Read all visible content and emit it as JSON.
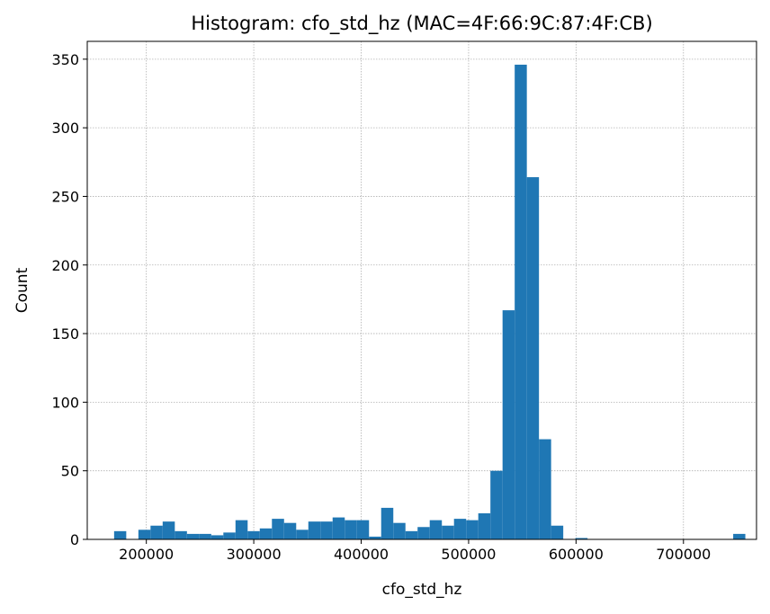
{
  "chart_data": {
    "type": "bar",
    "title": "Histogram: cfo_std_hz (MAC=4F:66:9C:87:4F:CB)",
    "xlabel": "cfo_std_hz",
    "ylabel": "Count",
    "xlim": [
      145000,
      768000
    ],
    "ylim": [
      0,
      363
    ],
    "xticks": [
      200000,
      300000,
      400000,
      500000,
      600000,
      700000
    ],
    "yticks": [
      0,
      50,
      100,
      150,
      200,
      250,
      300,
      350
    ],
    "grid": true,
    "bar_color": "#1f77b4",
    "bin_start": 170000,
    "bin_width": 11300,
    "values": [
      6,
      0,
      7,
      10,
      13,
      6,
      4,
      4,
      3,
      5,
      14,
      6,
      8,
      15,
      12,
      7,
      13,
      13,
      16,
      14,
      14,
      2,
      23,
      12,
      6,
      9,
      14,
      10,
      15,
      14,
      19,
      50,
      167,
      346,
      264,
      73,
      10,
      0,
      1,
      0,
      0,
      0,
      0,
      0,
      0,
      0,
      0,
      0,
      0,
      0,
      0,
      4
    ]
  }
}
